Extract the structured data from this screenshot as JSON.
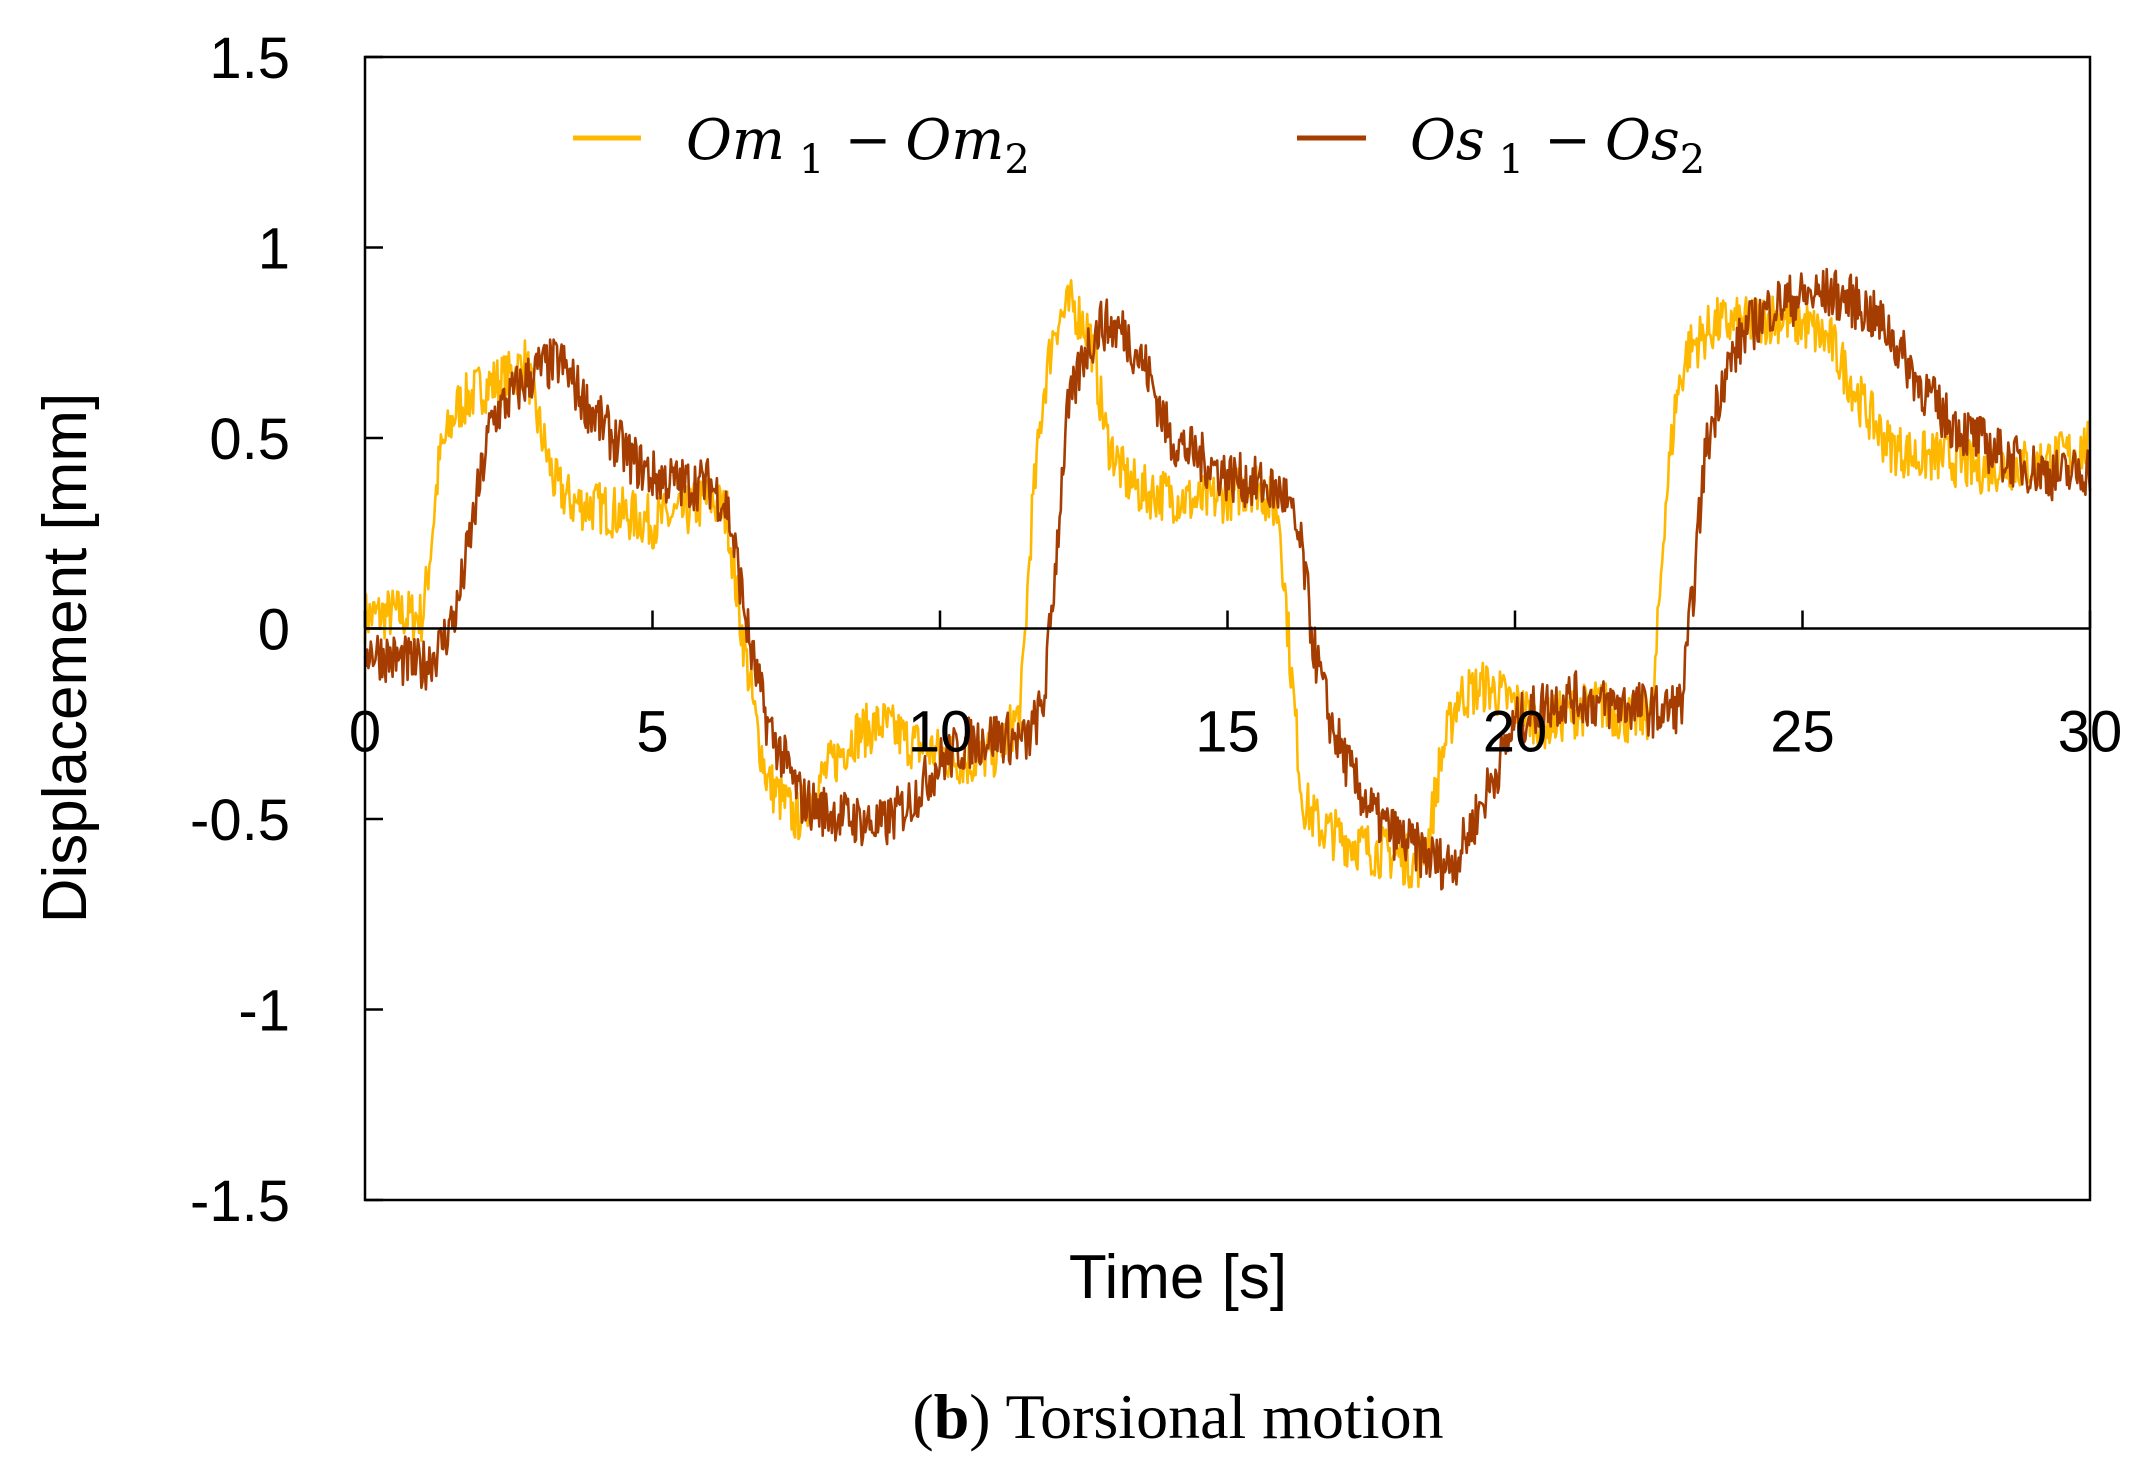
{
  "chart_data": {
    "type": "line",
    "title": "",
    "xlabel": "Time [s]",
    "ylabel": "Displacement [mm]",
    "xlim": [
      0,
      30
    ],
    "ylim": [
      -1.5,
      1.5
    ],
    "xticks": [
      0,
      5,
      10,
      15,
      20,
      25,
      30
    ],
    "xtick_labels": [
      "0",
      "5",
      "10",
      "15",
      "20",
      "25",
      "30"
    ],
    "yticks": [
      -1.5,
      -1,
      -0.5,
      0,
      0.5,
      1,
      1.5
    ],
    "ytick_labels": [
      "-1.5",
      "-1",
      "-0.5",
      "0",
      "0.5",
      "1",
      "1.5"
    ],
    "grid": false,
    "legend_position": "top",
    "caption": {
      "open": "(",
      "letter": "b",
      "close": ")",
      "text": " Torsional motion"
    },
    "series": [
      {
        "name": "Om 1 − Om2",
        "legend_main": "Om",
        "legend_sub1": "1",
        "legend_minus": "−",
        "legend_main2": "Om",
        "legend_sub2": "2",
        "color": "#FFB800",
        "x": [
          0,
          0.5,
          1.0,
          1.1,
          1.3,
          1.6,
          2.0,
          2.5,
          2.8,
          3.0,
          3.3,
          3.6,
          4.0,
          4.5,
          5.0,
          5.5,
          6.0,
          6.3,
          6.5,
          6.8,
          7.0,
          7.5,
          8.0,
          8.5,
          9.0,
          9.5,
          10.0,
          10.5,
          11.0,
          11.4,
          11.6,
          11.8,
          12.0,
          12.3,
          12.6,
          12.9,
          13.2,
          13.5,
          14.0,
          14.5,
          15.0,
          15.5,
          15.9,
          16.1,
          16.3,
          16.6,
          17.0,
          17.5,
          18.0,
          18.3,
          18.5,
          18.7,
          19.0,
          19.5,
          20.0,
          20.5,
          21.0,
          21.5,
          22.0,
          22.4,
          22.6,
          22.8,
          23.0,
          23.5,
          24.0,
          24.5,
          25.0,
          25.5,
          26.0,
          26.5,
          27.0,
          27.5,
          28.0,
          28.5,
          29.0,
          29.5,
          30.0
        ],
        "y": [
          0.03,
          0.04,
          0.03,
          0.15,
          0.45,
          0.58,
          0.63,
          0.66,
          0.7,
          0.55,
          0.38,
          0.33,
          0.32,
          0.3,
          0.28,
          0.3,
          0.34,
          0.3,
          0.05,
          -0.25,
          -0.4,
          -0.5,
          -0.38,
          -0.28,
          -0.25,
          -0.3,
          -0.33,
          -0.35,
          -0.32,
          -0.22,
          0.3,
          0.62,
          0.8,
          0.85,
          0.78,
          0.5,
          0.4,
          0.36,
          0.35,
          0.33,
          0.35,
          0.38,
          0.3,
          -0.1,
          -0.45,
          -0.52,
          -0.55,
          -0.58,
          -0.6,
          -0.62,
          -0.55,
          -0.35,
          -0.18,
          -0.15,
          -0.2,
          -0.25,
          -0.22,
          -0.2,
          -0.24,
          -0.22,
          0.3,
          0.6,
          0.73,
          0.8,
          0.8,
          0.82,
          0.8,
          0.75,
          0.6,
          0.48,
          0.45,
          0.45,
          0.42,
          0.43,
          0.43,
          0.45,
          0.48
        ]
      },
      {
        "name": "Os 1 − Os2",
        "legend_main": "Os",
        "legend_sub1": "1",
        "legend_minus": "−",
        "legend_main2": "Os",
        "legend_sub2": "2",
        "color": "#A63D00",
        "x": [
          0,
          0.5,
          1.0,
          1.3,
          1.6,
          1.9,
          2.2,
          2.6,
          3.0,
          3.4,
          3.8,
          4.2,
          4.6,
          5.0,
          5.5,
          6.0,
          6.3,
          6.5,
          6.7,
          7.0,
          7.3,
          7.6,
          8.0,
          8.5,
          9.0,
          9.5,
          10.0,
          10.5,
          11.0,
          11.5,
          11.8,
          12.0,
          12.2,
          12.5,
          12.8,
          13.2,
          13.6,
          14.0,
          14.5,
          15.0,
          15.5,
          16.0,
          16.3,
          16.5,
          16.8,
          17.2,
          17.6,
          18.0,
          18.5,
          18.8,
          19.0,
          19.3,
          19.6,
          20.0,
          20.5,
          21.0,
          21.5,
          22.0,
          22.5,
          22.9,
          23.1,
          23.3,
          23.6,
          24.0,
          24.5,
          25.0,
          25.5,
          26.0,
          26.5,
          27.0,
          27.5,
          28.0,
          28.5,
          29.0,
          29.5,
          30.0
        ],
        "y": [
          -0.05,
          -0.08,
          -0.1,
          -0.05,
          0.05,
          0.3,
          0.55,
          0.62,
          0.68,
          0.7,
          0.6,
          0.52,
          0.45,
          0.4,
          0.38,
          0.38,
          0.32,
          0.15,
          -0.05,
          -0.25,
          -0.35,
          -0.45,
          -0.48,
          -0.5,
          -0.52,
          -0.45,
          -0.35,
          -0.3,
          -0.28,
          -0.3,
          -0.2,
          0.15,
          0.55,
          0.72,
          0.8,
          0.78,
          0.68,
          0.5,
          0.45,
          0.4,
          0.38,
          0.35,
          0.2,
          -0.05,
          -0.25,
          -0.4,
          -0.5,
          -0.55,
          -0.6,
          -0.62,
          -0.6,
          -0.5,
          -0.4,
          -0.25,
          -0.2,
          -0.18,
          -0.2,
          -0.2,
          -0.22,
          -0.2,
          0.1,
          0.45,
          0.65,
          0.78,
          0.85,
          0.87,
          0.88,
          0.85,
          0.78,
          0.65,
          0.55,
          0.5,
          0.45,
          0.42,
          0.4,
          0.42
        ]
      }
    ]
  }
}
